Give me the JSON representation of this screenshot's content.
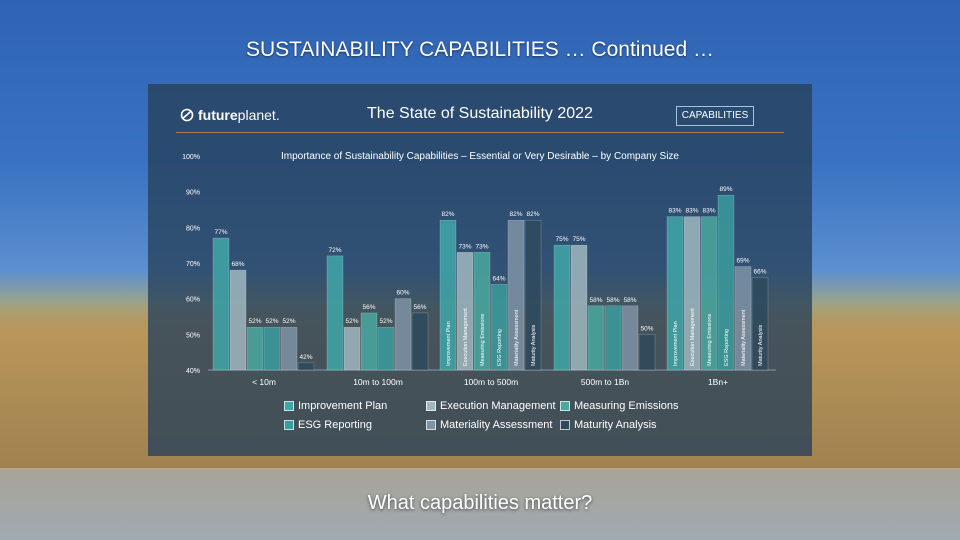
{
  "slide": {
    "title": "SUSTAINABILITY CAPABILITIES … Continued …",
    "bottom_text": "What capabilities matter?"
  },
  "panel": {
    "logo_bold": "future",
    "logo_rest": "planet.",
    "report_title": "The State of Sustainability 2022",
    "badge": "CAPABILITIES"
  },
  "chart_data": {
    "type": "bar",
    "title": "Importance of Sustainability Capabilities – Essential or Very Desirable – by Company Size",
    "categories": [
      "< 10m",
      "10m to 100m",
      "100m to 500m",
      "500m to 1Bn",
      "1Bn+"
    ],
    "ylim": [
      40,
      100
    ],
    "yticks": [
      "40%",
      "50%",
      "60%",
      "70%",
      "80%",
      "90%",
      "100%"
    ],
    "series": [
      {
        "name": "Improvement Plan",
        "values": [
          77,
          72,
          82,
          75,
          83
        ],
        "color": "#3fa7a8"
      },
      {
        "name": "Execution Management",
        "values": [
          68,
          52,
          73,
          75,
          83
        ],
        "color": "#9fb7bf"
      },
      {
        "name": "Measuring Emissions",
        "values": [
          52,
          56,
          73,
          58,
          83
        ],
        "color": "#4aa8a0"
      },
      {
        "name": "ESG Reporting",
        "values": [
          52,
          52,
          64,
          58,
          89
        ],
        "color": "#3a9c9e"
      },
      {
        "name": "Materiality Assessment",
        "values": [
          52,
          60,
          82,
          58,
          69
        ],
        "color": "#7e93a6"
      },
      {
        "name": "Maturity Analysis",
        "values": [
          42,
          56,
          82,
          50,
          66
        ],
        "color": "#2e4a5e"
      }
    ],
    "in_bar_labels_categories": [
      2,
      4
    ],
    "legend_position": "bottom",
    "colors": {
      "panel": "#26405a",
      "divider": "#b07a4a"
    }
  }
}
